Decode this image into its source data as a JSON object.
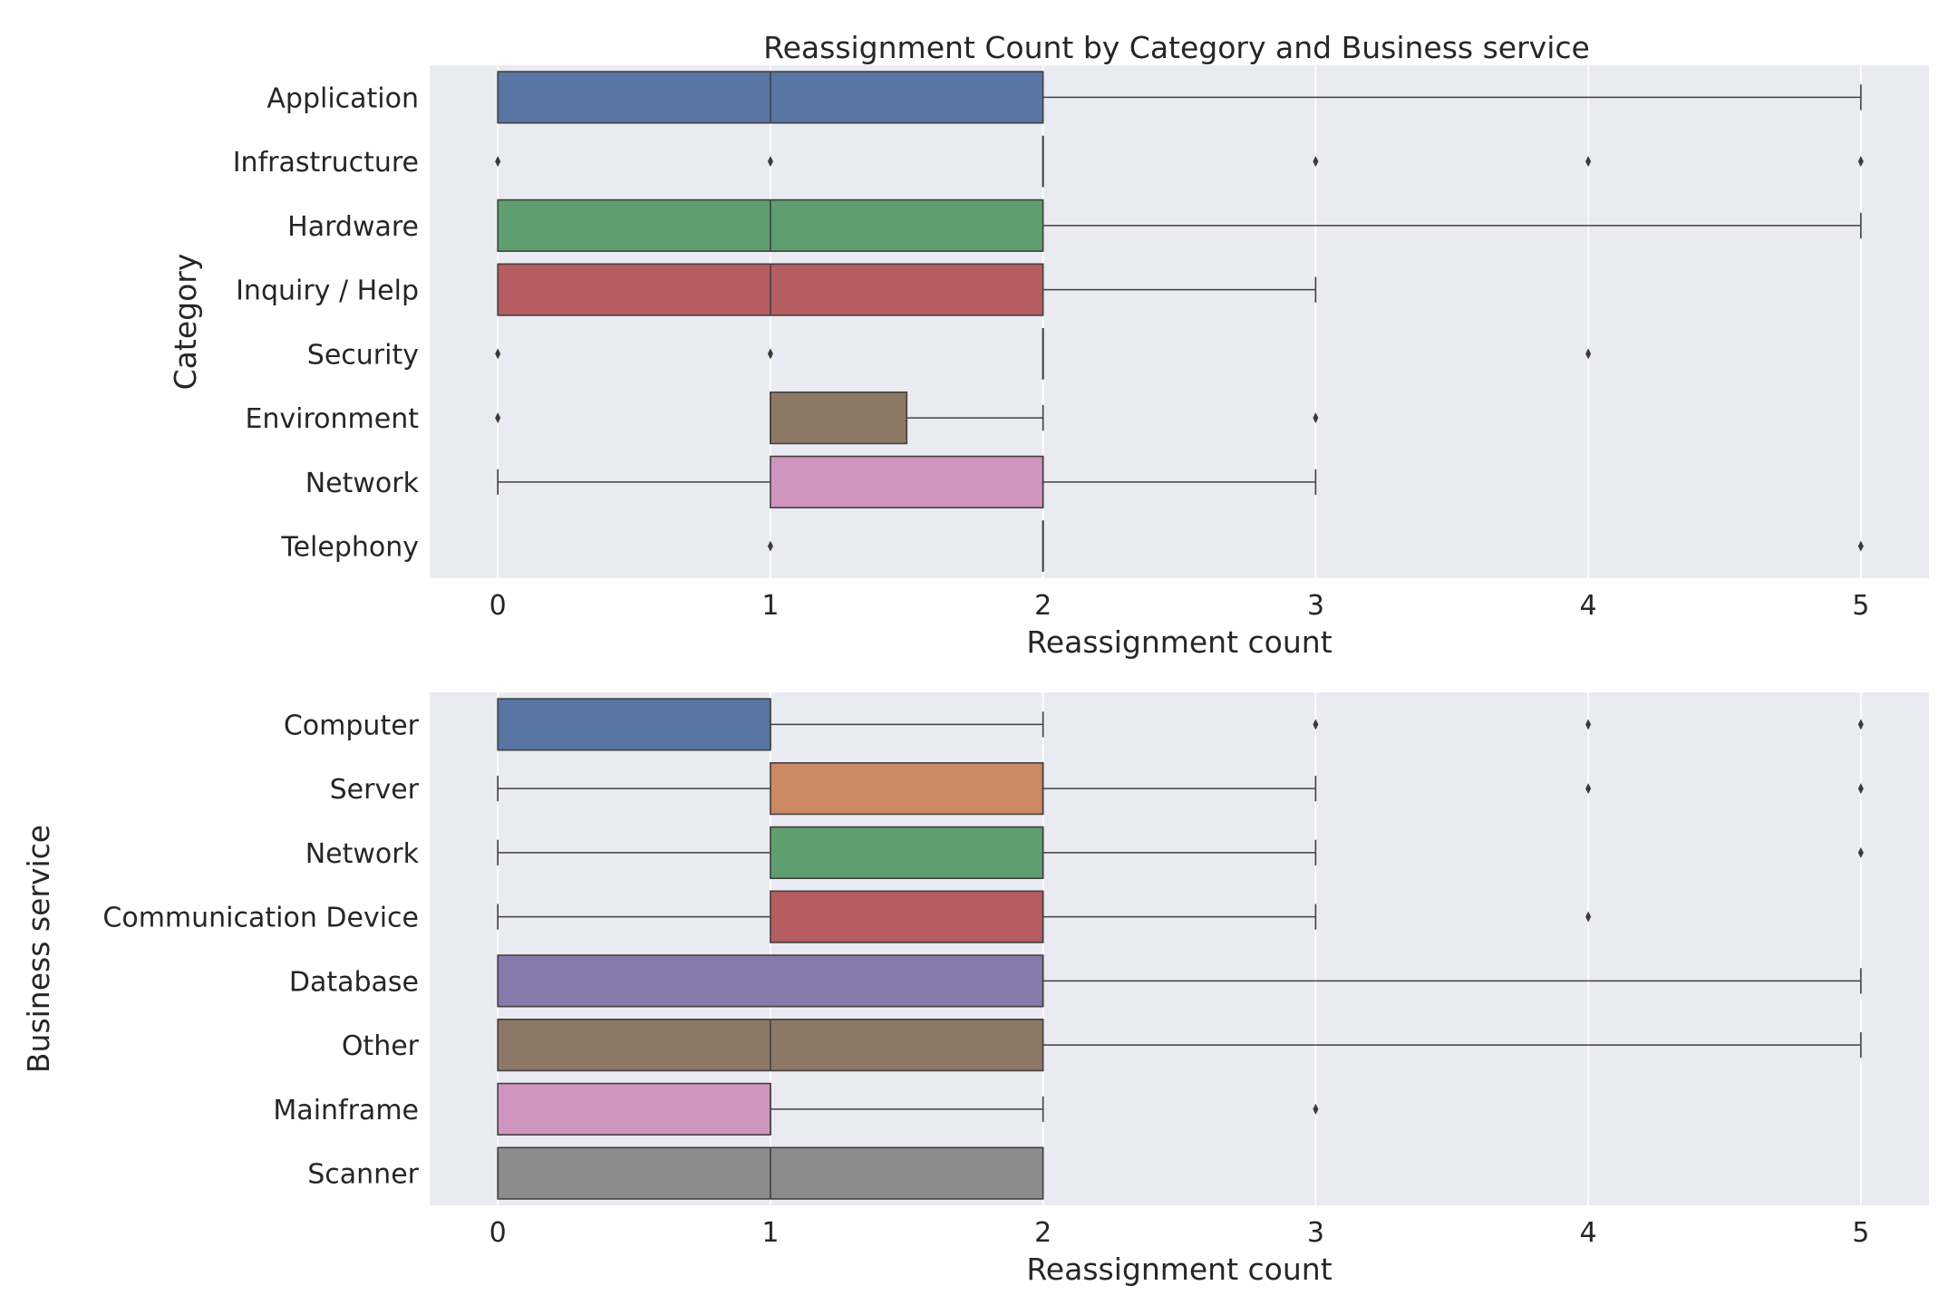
{
  "title": "Reassignment Count by Category and Business service",
  "chart_data": [
    {
      "type": "boxplot",
      "orientation": "horizontal",
      "title": "Reassignment Count by Category and Business service",
      "xlabel": "Reassignment count",
      "ylabel": "Category",
      "xlim": [
        -0.25,
        5.25
      ],
      "xticks": [
        "0",
        "1",
        "2",
        "3",
        "4",
        "5"
      ],
      "grid": true,
      "categories": [
        "Application",
        "Infrastructure",
        "Hardware",
        "Inquiry / Help",
        "Security",
        "Environment",
        "Network",
        "Telephony"
      ],
      "colors": [
        "#5875a4",
        "#cc8963",
        "#5f9e6e",
        "#b55d60",
        "#857aab",
        "#8d7866",
        "#d095bf",
        "#8c8c8c"
      ],
      "boxes": [
        {
          "q1": 0,
          "median": 1,
          "q3": 2,
          "whisker_low": 0,
          "whisker_high": 5,
          "outliers": []
        },
        {
          "q1": 2,
          "median": 2,
          "q3": 2,
          "whisker_low": 2,
          "whisker_high": 2,
          "outliers": [
            0,
            1,
            3,
            4,
            5
          ]
        },
        {
          "q1": 0,
          "median": 1,
          "q3": 2,
          "whisker_low": 0,
          "whisker_high": 5,
          "outliers": []
        },
        {
          "q1": 0,
          "median": 1,
          "q3": 2,
          "whisker_low": 0,
          "whisker_high": 3,
          "outliers": []
        },
        {
          "q1": 2,
          "median": 2,
          "q3": 2,
          "whisker_low": 2,
          "whisker_high": 2,
          "outliers": [
            0,
            1,
            4
          ]
        },
        {
          "q1": 1,
          "median": 1,
          "q3": 1.5,
          "whisker_low": 1,
          "whisker_high": 2,
          "outliers": [
            0,
            3
          ]
        },
        {
          "q1": 1,
          "median": 2,
          "q3": 2,
          "whisker_low": 0,
          "whisker_high": 3,
          "outliers": []
        },
        {
          "q1": 2,
          "median": 2,
          "q3": 2,
          "whisker_low": 2,
          "whisker_high": 2,
          "outliers": [
            1,
            5
          ]
        }
      ]
    },
    {
      "type": "boxplot",
      "orientation": "horizontal",
      "xlabel": "Reassignment count",
      "ylabel": "Business service",
      "xlim": [
        -0.25,
        5.25
      ],
      "xticks": [
        "0",
        "1",
        "2",
        "3",
        "4",
        "5"
      ],
      "grid": true,
      "categories": [
        "Computer",
        "Server",
        "Network",
        "Communication Device",
        "Database",
        "Other",
        "Mainframe",
        "Scanner"
      ],
      "colors": [
        "#5875a4",
        "#cc8963",
        "#5f9e6e",
        "#b55d60",
        "#857aab",
        "#8d7866",
        "#d095bf",
        "#8c8c8c"
      ],
      "boxes": [
        {
          "q1": 0,
          "median": 1,
          "q3": 1,
          "whisker_low": 0,
          "whisker_high": 2,
          "outliers": [
            3,
            4,
            5
          ]
        },
        {
          "q1": 1,
          "median": 2,
          "q3": 2,
          "whisker_low": 0,
          "whisker_high": 3,
          "outliers": [
            4,
            5
          ]
        },
        {
          "q1": 1,
          "median": 2,
          "q3": 2,
          "whisker_low": 0,
          "whisker_high": 3,
          "outliers": [
            5
          ]
        },
        {
          "q1": 1,
          "median": 2,
          "q3": 2,
          "whisker_low": 0,
          "whisker_high": 3,
          "outliers": [
            4
          ]
        },
        {
          "q1": 0,
          "median": 2,
          "q3": 2,
          "whisker_low": 0,
          "whisker_high": 5,
          "outliers": []
        },
        {
          "q1": 0,
          "median": 1,
          "q3": 2,
          "whisker_low": 0,
          "whisker_high": 5,
          "outliers": []
        },
        {
          "q1": 0,
          "median": 1,
          "q3": 1,
          "whisker_low": 0,
          "whisker_high": 2,
          "outliers": [
            3
          ]
        },
        {
          "q1": 0,
          "median": 1,
          "q3": 2,
          "whisker_low": 0,
          "whisker_high": 2,
          "outliers": []
        }
      ]
    }
  ]
}
